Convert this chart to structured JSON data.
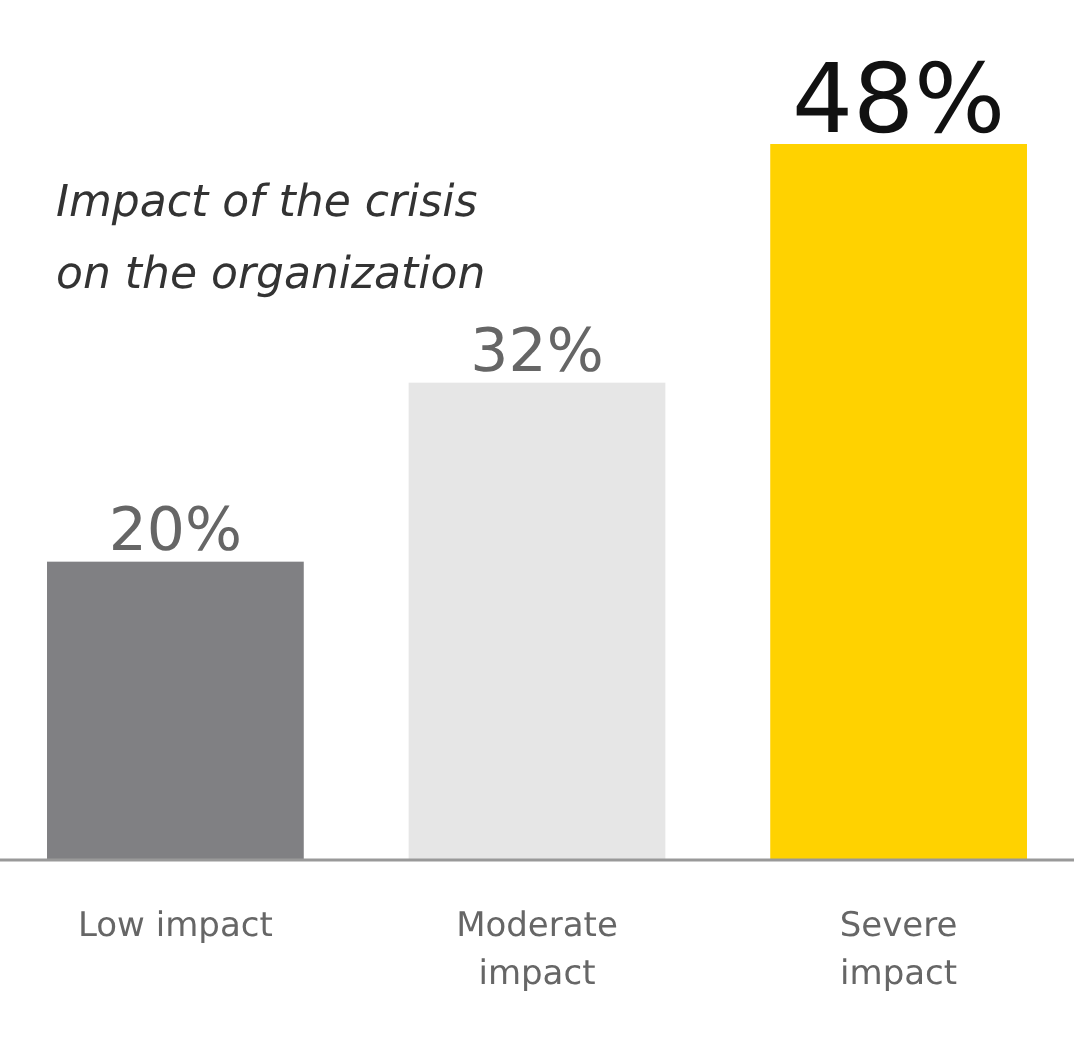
{
  "chart_data": {
    "type": "bar",
    "title": "Impact of the crisis on the organization",
    "categories": [
      "Low impact",
      "Moderate impact",
      "Severe impact"
    ],
    "values": [
      20,
      32,
      48
    ],
    "value_labels": [
      "20%",
      "32%",
      "48%"
    ],
    "colors": [
      "#808083",
      "#e6e6e6",
      "#ffd200"
    ]
  }
}
